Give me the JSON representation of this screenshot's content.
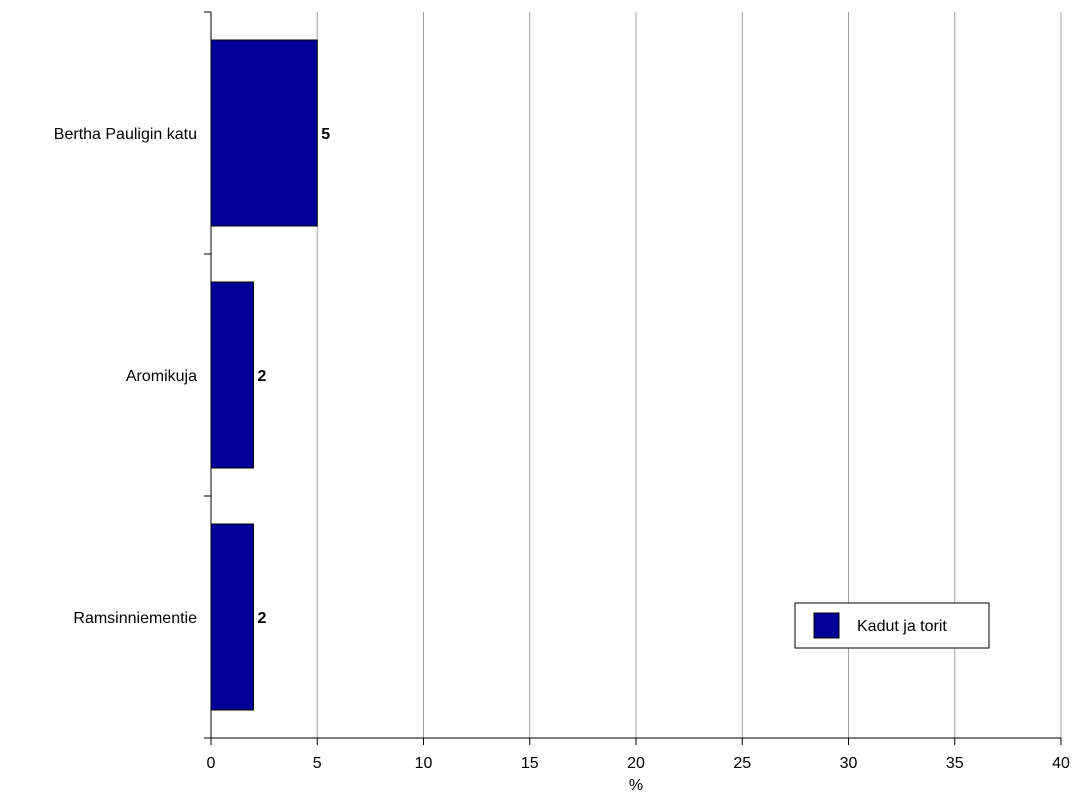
{
  "chart_data": {
    "type": "bar",
    "orientation": "horizontal",
    "categories": [
      "Bertha Pauligin katu",
      "Aromikuja",
      "Ramsinniementie"
    ],
    "series": [
      {
        "name": "Kadut ja torit",
        "values": [
          5,
          2,
          2
        ],
        "color": "#000099"
      }
    ],
    "data_labels": [
      "5",
      "2",
      "2"
    ],
    "xlabel": "%",
    "ylabel": "",
    "xlim": [
      0,
      40
    ],
    "xticks": [
      0,
      5,
      10,
      15,
      20,
      25,
      30,
      35,
      40
    ],
    "grid": "vertical",
    "legend_position": "bottom-right",
    "gridline_color": "#a0a0a0"
  }
}
